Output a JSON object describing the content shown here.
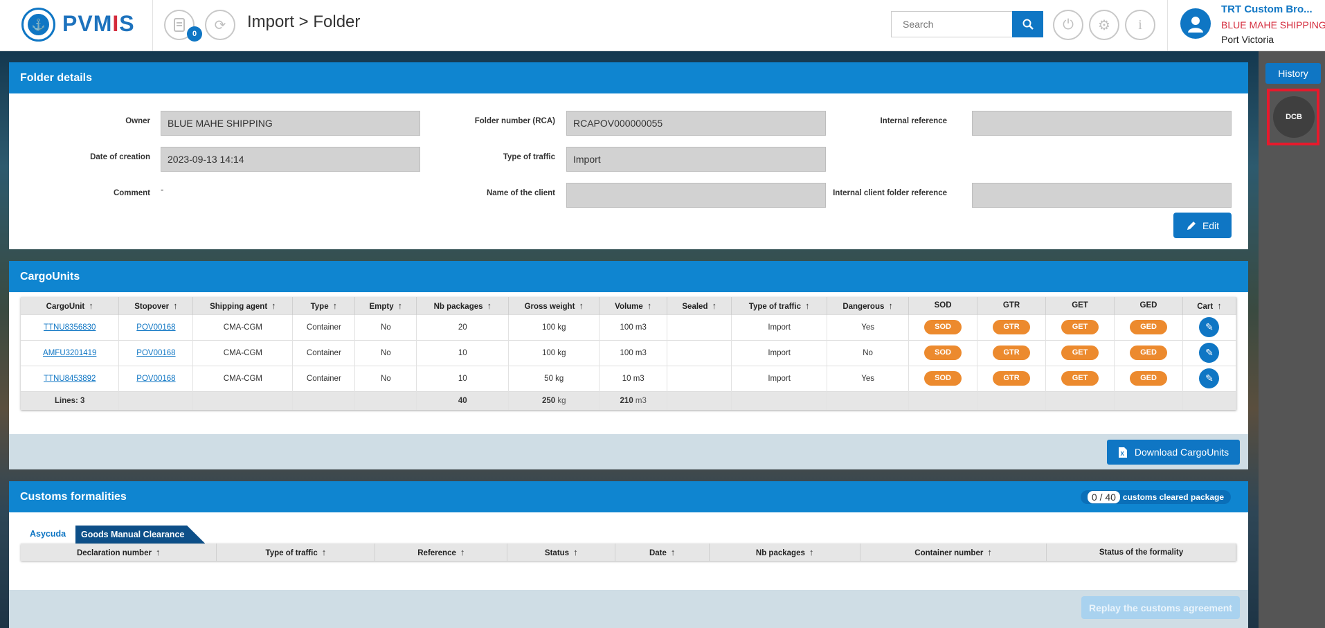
{
  "app": {
    "logo_prefix": "PVM",
    "logo_i": "I",
    "logo_suffix": "S",
    "logo_mark": "⚓"
  },
  "header": {
    "badge_count": "0",
    "title": "Import > Folder",
    "search_placeholder": "Search"
  },
  "user": {
    "company": "TRT Custom Bro...",
    "agent": "BLUE MAHE SHIPPING",
    "port": "Port Victoria"
  },
  "sidebar": {
    "history_label": "History",
    "dcb_label": "DCB"
  },
  "folder": {
    "title": "Folder details",
    "owner_label": "Owner",
    "owner": "BLUE MAHE SHIPPING",
    "date_label": "Date of creation",
    "date": "2023-09-13 14:14",
    "comment_label": "Comment",
    "comment": "-",
    "folder_number_label": "Folder number (RCA)",
    "folder_number": "RCAPOV000000055",
    "traffic_label": "Type of traffic",
    "traffic": "Import",
    "client_label": "Name of the client",
    "client": "",
    "internal_ref_label": "Internal reference",
    "internal_ref": "",
    "internal_client_ref_label": "Internal client folder reference",
    "internal_client_ref": "",
    "edit_label": "Edit"
  },
  "cargo": {
    "title": "CargoUnits",
    "columns": [
      "CargoUnit",
      "Stopover",
      "Shipping agent",
      "Type",
      "Empty",
      "Nb packages",
      "Gross weight",
      "Volume",
      "Sealed",
      "Type of traffic",
      "Dangerous",
      "SOD",
      "GTR",
      "GET",
      "GED",
      "Cart"
    ],
    "rows": [
      {
        "unit": "TTNU8356830",
        "stopover": "POV00168",
        "agent": "CMA-CGM",
        "type": "Container",
        "empty": "No",
        "packages": "20",
        "weight": "100 kg",
        "volume": "100 m3",
        "sealed": "",
        "traffic": "Import",
        "dangerous": "Yes"
      },
      {
        "unit": "AMFU3201419",
        "stopover": "POV00168",
        "agent": "CMA-CGM",
        "type": "Container",
        "empty": "No",
        "packages": "10",
        "weight": "100 kg",
        "volume": "100 m3",
        "sealed": "",
        "traffic": "Import",
        "dangerous": "No"
      },
      {
        "unit": "TTNU8453892",
        "stopover": "POV00168",
        "agent": "CMA-CGM",
        "type": "Container",
        "empty": "No",
        "packages": "10",
        "weight": "50 kg",
        "volume": "10 m3",
        "sealed": "",
        "traffic": "Import",
        "dangerous": "Yes"
      }
    ],
    "pill_labels": [
      "SOD",
      "GTR",
      "GET",
      "GED"
    ],
    "footer": {
      "lines": "Lines: 3",
      "packages": "40",
      "weight_value": "250",
      "weight_unit": "kg",
      "volume_value": "210",
      "volume_unit": "m3"
    },
    "download_label": "Download CargoUnits"
  },
  "customs": {
    "title": "Customs formalities",
    "cleared_count": "0 / 40",
    "cleared_label": "customs cleared package",
    "tabs": [
      "Asycuda",
      "Goods Manual Clearance"
    ],
    "columns": [
      "Declaration number",
      "Type of traffic",
      "Reference",
      "Status",
      "Date",
      "Nb packages",
      "Container number",
      "Status of the formality"
    ],
    "replay_label": "Replay the customs agreement"
  }
}
